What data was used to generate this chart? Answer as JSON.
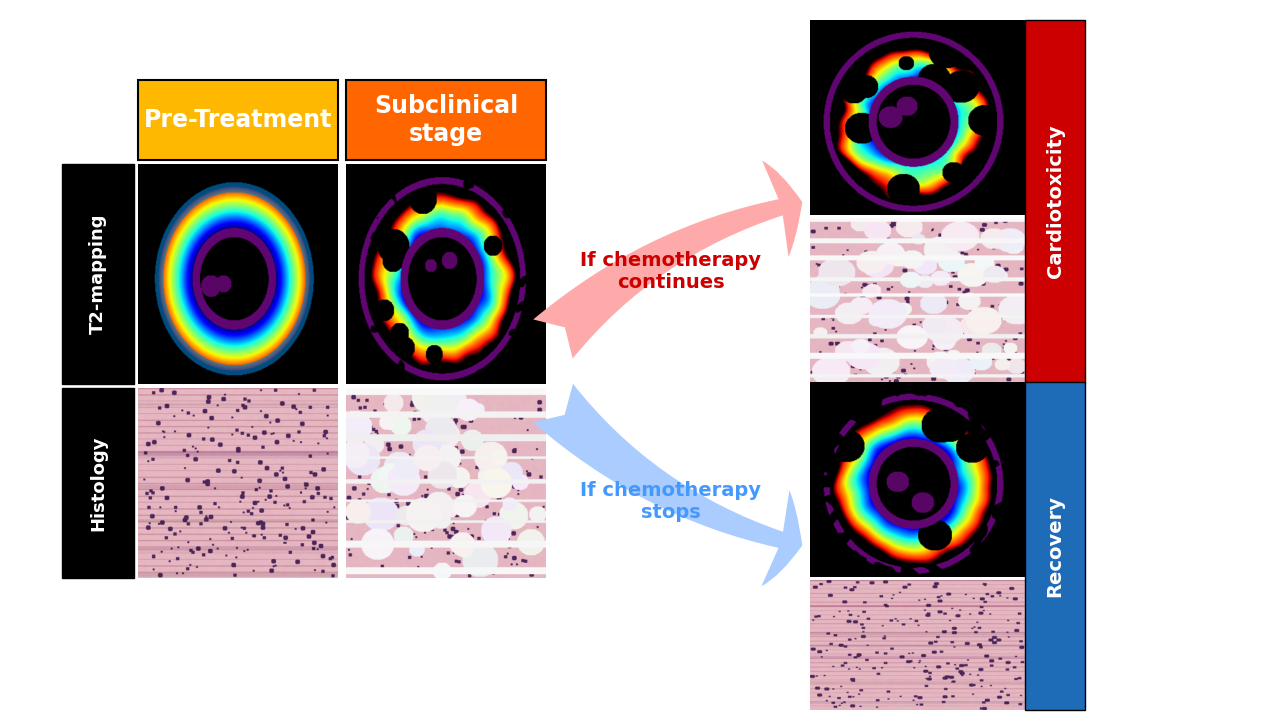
{
  "bg_color": "#ffffff",
  "title_pre_treatment": "Pre-Treatment",
  "title_subclinical": "Subclinical\nstage",
  "color_pre_treatment_bg": "#FFB800",
  "color_subclinical_bg": "#FF6600",
  "label_t2mapping": "T2-mapping",
  "label_histology": "Histology",
  "label_cardiotoxicity": "Cardiotoxicity",
  "label_recovery": "Recovery",
  "color_cardiotoxicity": "#CC0000",
  "color_recovery": "#1E6BB8",
  "arrow_continues_color": "#FFAAAA",
  "arrow_stops_color": "#AACCFF",
  "arrow_text_continues_color": "#CC0000",
  "arrow_text_stops_color": "#4499FF",
  "arrow_continues_text": "If chemotherapy\ncontinues",
  "arrow_stops_text": "If chemotherapy\nstops"
}
